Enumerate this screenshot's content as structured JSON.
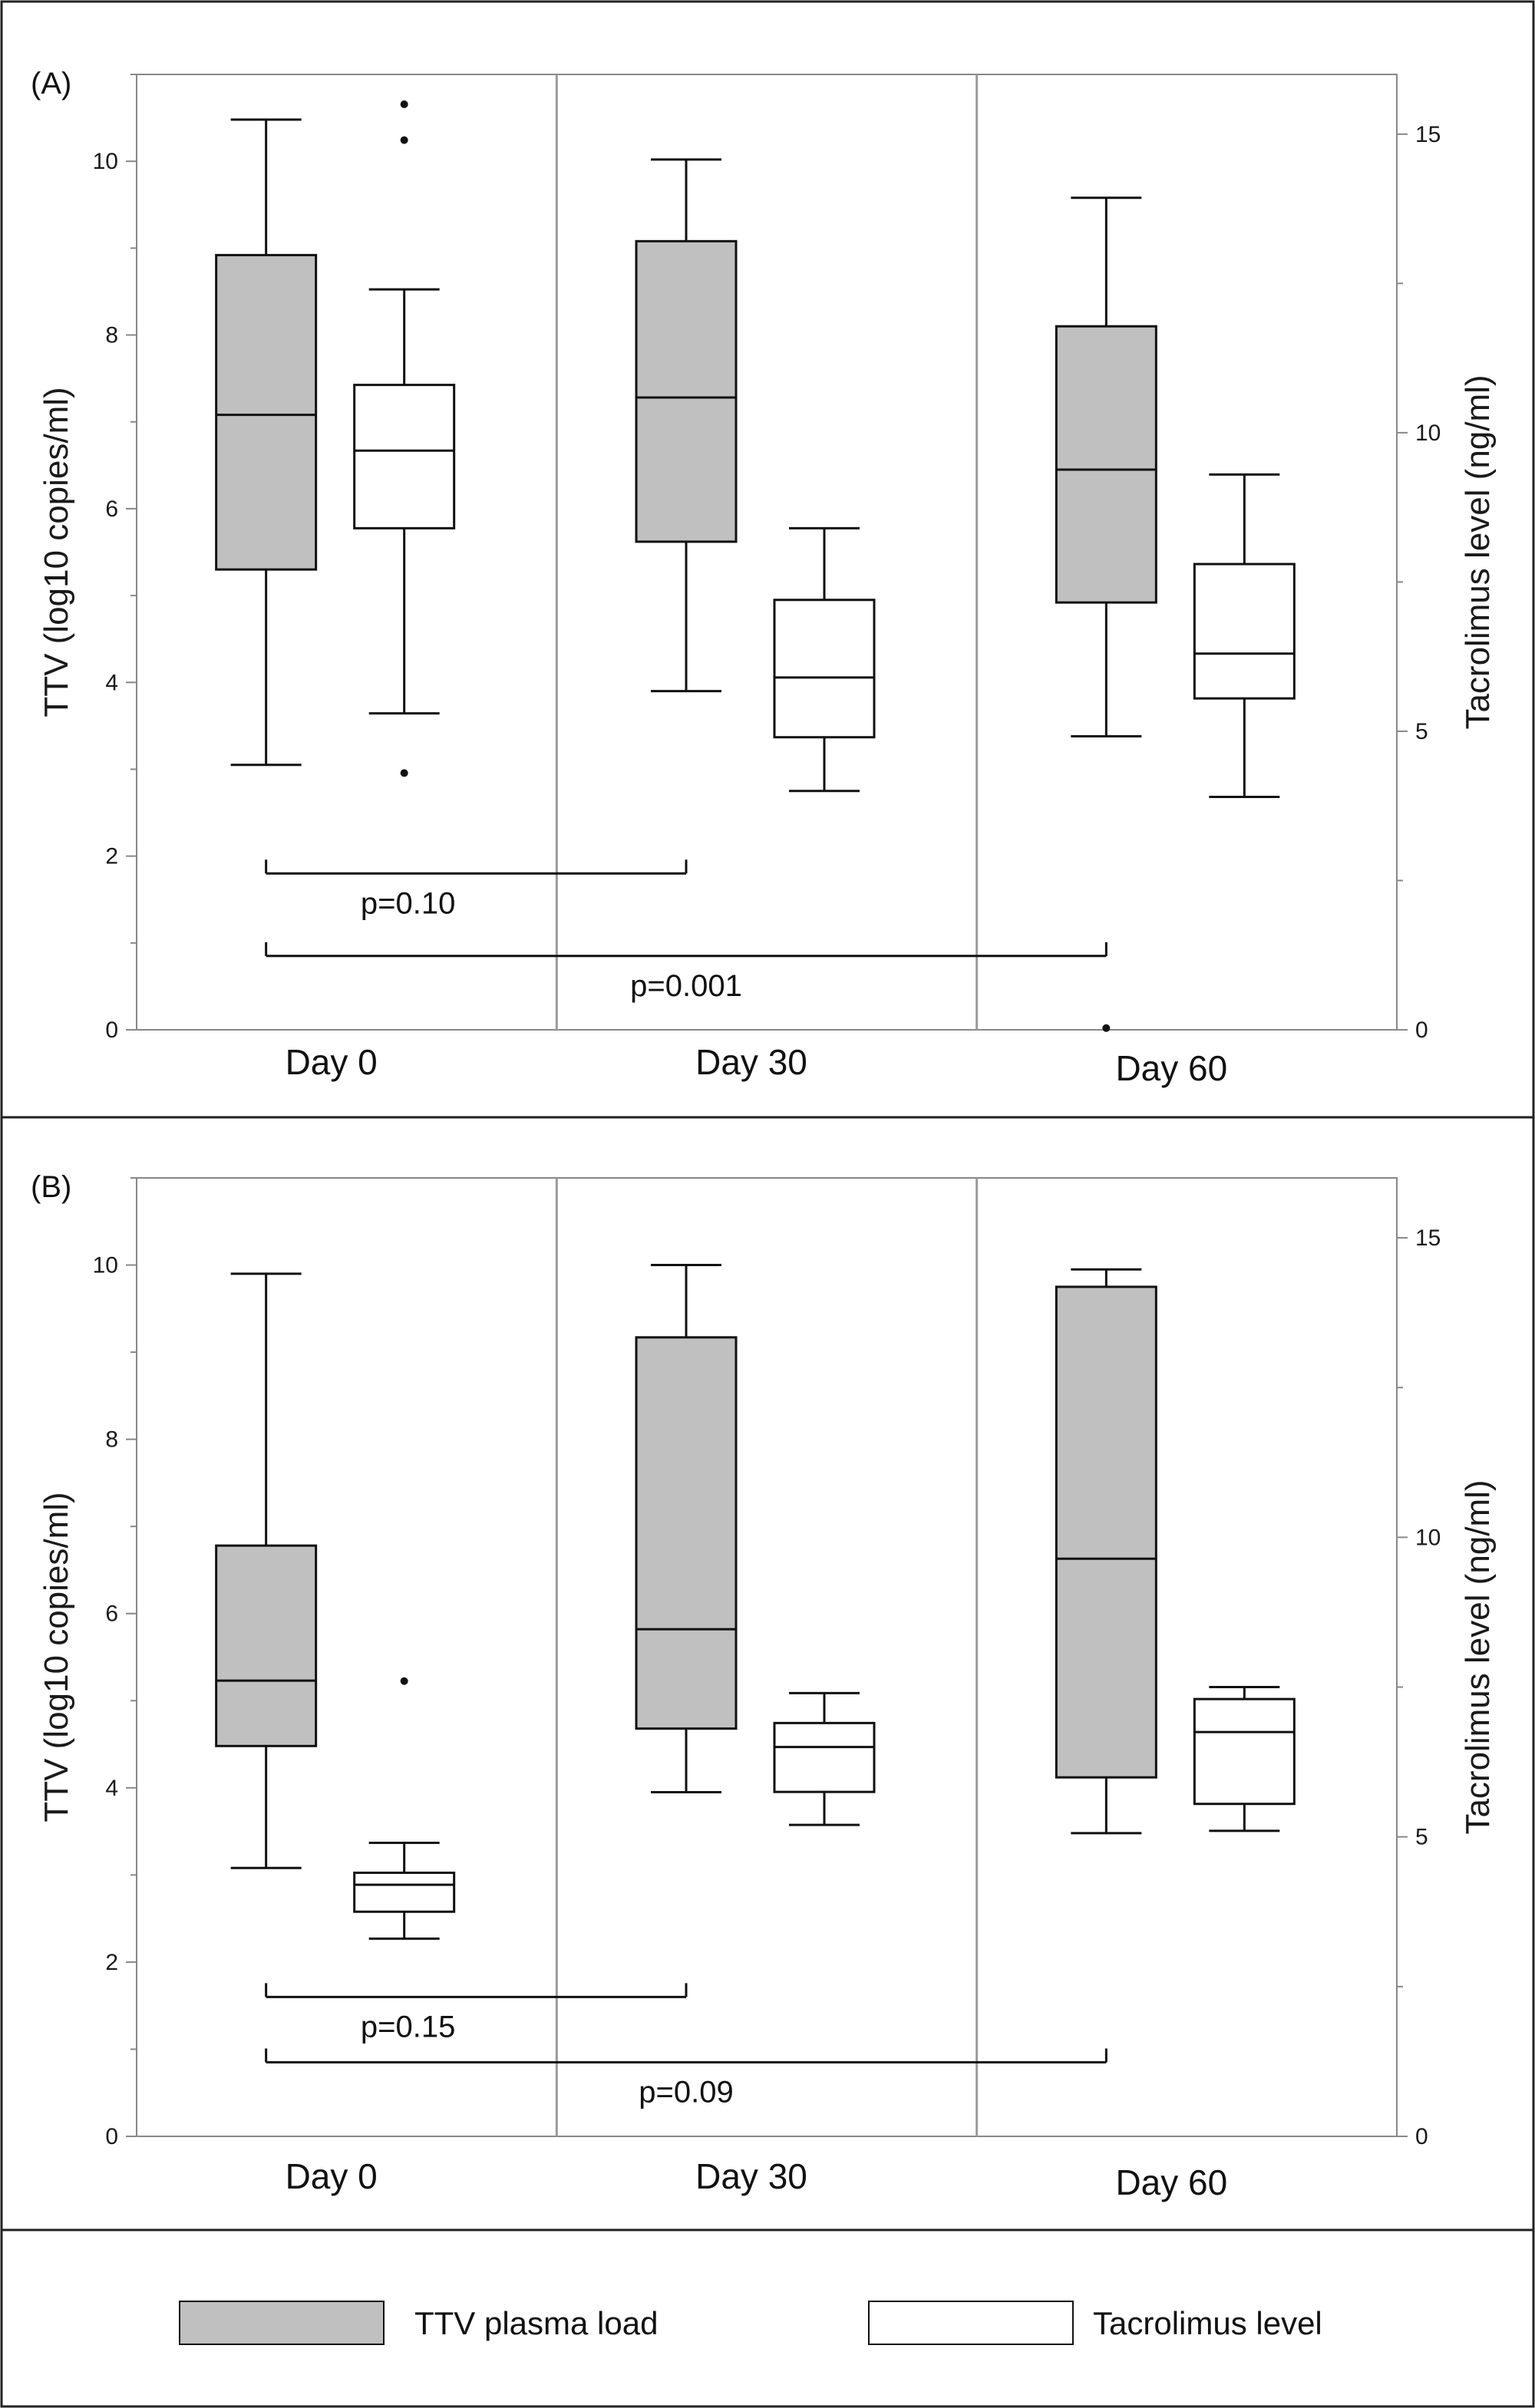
{
  "chart_data": [
    {
      "type": "box",
      "panel_label": "(A)",
      "categories": [
        "Day 0",
        "Day 30",
        "Day 60"
      ],
      "ylabel_left": "TTV (log10 copies/ml)",
      "ylabel_right": "Tacrolimus level (ng/ml)",
      "ylim_left": [
        0,
        11
      ],
      "ylim_right": [
        0,
        16
      ],
      "yticks_left": [
        "0",
        "2",
        "4",
        "6",
        "8",
        "10"
      ],
      "yticks_right": [
        "0",
        "5",
        "10",
        "15"
      ],
      "grid": false,
      "series": [
        {
          "name": "TTV plasma load",
          "axis": "left",
          "fill": "#c0c0c0",
          "boxes": [
            {
              "min": 3.05,
              "q1": 5.3,
              "median": 7.08,
              "q3": 8.92,
              "max": 10.48,
              "outliers": []
            },
            {
              "min": 3.9,
              "q1": 5.62,
              "median": 7.28,
              "q3": 9.08,
              "max": 10.02,
              "outliers": []
            },
            {
              "min": 3.38,
              "q1": 4.92,
              "median": 6.45,
              "q3": 8.1,
              "max": 9.58,
              "outliers": [
                0.02
              ]
            }
          ]
        },
        {
          "name": "Tacrolimus level",
          "axis": "right",
          "fill": "#ffffff",
          "boxes": [
            {
              "min": 5.3,
              "q1": 8.4,
              "median": 9.7,
              "q3": 10.8,
              "max": 12.4,
              "outliers": [
                4.3,
                14.9,
                15.5
              ]
            },
            {
              "min": 4.0,
              "q1": 4.9,
              "median": 5.9,
              "q3": 7.2,
              "max": 8.4,
              "outliers": []
            },
            {
              "min": 3.9,
              "q1": 5.55,
              "median": 6.3,
              "q3": 7.8,
              "max": 9.3,
              "outliers": []
            }
          ]
        }
      ],
      "annotations": [
        {
          "label": "p=0.10",
          "from": "Day 0",
          "to": "Day 30",
          "y": 1.8
        },
        {
          "label": "p=0.001",
          "from": "Day 0",
          "to": "Day 60",
          "y": 0.85
        }
      ]
    },
    {
      "type": "box",
      "panel_label": "(B)",
      "categories": [
        "Day 0",
        "Day 30",
        "Day 60"
      ],
      "ylabel_left": "TTV (log10 copies/ml)",
      "ylabel_right": "Tacrolimus level (ng/ml)",
      "ylim_left": [
        0,
        11
      ],
      "ylim_right": [
        0,
        16
      ],
      "yticks_left": [
        "0",
        "2",
        "4",
        "6",
        "8",
        "10"
      ],
      "yticks_right": [
        "0",
        "5",
        "10",
        "15"
      ],
      "grid": false,
      "series": [
        {
          "name": "TTV plasma load",
          "axis": "left",
          "fill": "#c0c0c0",
          "boxes": [
            {
              "min": 3.08,
              "q1": 4.48,
              "median": 5.23,
              "q3": 6.78,
              "max": 9.9,
              "outliers": []
            },
            {
              "min": 3.95,
              "q1": 4.68,
              "median": 5.82,
              "q3": 9.17,
              "max": 10.0,
              "outliers": []
            },
            {
              "min": 3.48,
              "q1": 4.12,
              "median": 6.63,
              "q3": 9.75,
              "max": 9.95,
              "outliers": []
            }
          ]
        },
        {
          "name": "Tacrolimus level",
          "axis": "right",
          "fill": "#ffffff",
          "boxes": [
            {
              "min": 3.3,
              "q1": 3.75,
              "median": 4.2,
              "q3": 4.4,
              "max": 4.9,
              "outliers": [
                7.6
              ]
            },
            {
              "min": 5.2,
              "q1": 5.75,
              "median": 6.5,
              "q3": 6.9,
              "max": 7.4,
              "outliers": []
            },
            {
              "min": 5.1,
              "q1": 5.55,
              "median": 6.75,
              "q3": 7.3,
              "max": 7.5,
              "outliers": []
            }
          ]
        }
      ],
      "annotations": [
        {
          "label": "p=0.15",
          "from": "Day 0",
          "to": "Day 30",
          "y": 1.6
        },
        {
          "label": "p=0.09",
          "from": "Day 0",
          "to": "Day 60",
          "y": 0.85
        }
      ]
    }
  ],
  "legend": {
    "position": "bottom",
    "items": [
      {
        "label": "TTV plasma load",
        "fill": "#c0c0c0"
      },
      {
        "label": "Tacrolimus level",
        "fill": "#ffffff"
      }
    ]
  },
  "colors": {
    "stroke": "#111111",
    "divider": "#9a9a9a",
    "axis": "#888888"
  }
}
